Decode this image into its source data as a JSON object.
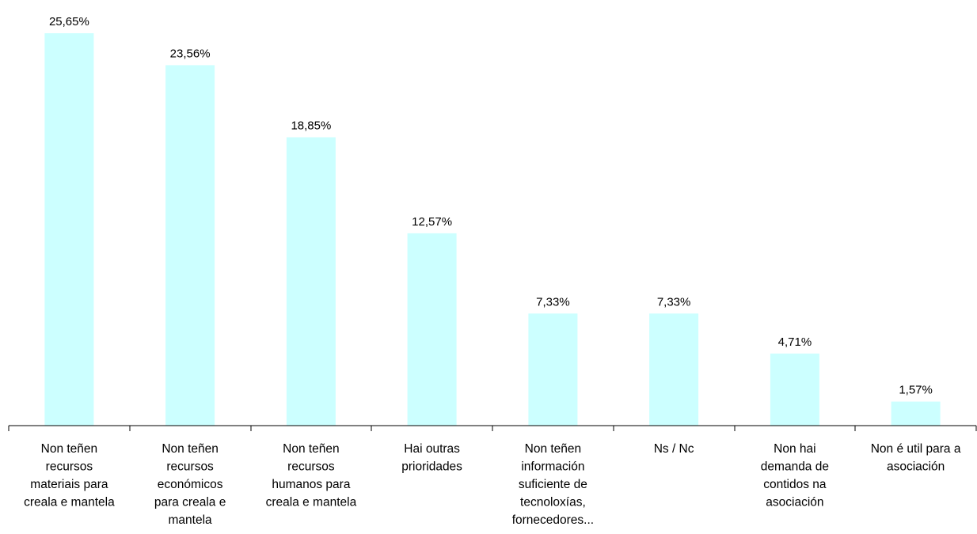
{
  "chart_data": {
    "type": "bar",
    "categories": [
      "Non teñen recursos materiais para creala e mantela",
      "Non teñen recursos económicos para creala e mantela",
      "Non teñen recursos humanos para creala e mantela",
      "Hai outras prioridades",
      "Non teñen información suficiente de tecnoloxías, fornecedores...",
      "Ns / Nc",
      "Non hai demanda de contidos na asociación",
      "Non é util para a asociación"
    ],
    "category_label_lines": [
      [
        "Non teñen",
        "recursos",
        "materiais para",
        "creala e mantela"
      ],
      [
        "Non teñen",
        "recursos",
        "económicos",
        "para creala e",
        "mantela"
      ],
      [
        "Non teñen",
        "recursos",
        "humanos para",
        "creala e mantela"
      ],
      [
        "Hai outras",
        "prioridades"
      ],
      [
        "Non teñen",
        "información",
        "suficiente de",
        "tecnoloxías,",
        "fornecedores..."
      ],
      [
        "Ns / Nc"
      ],
      [
        "Non hai",
        "demanda de",
        "contidos na",
        "asociación"
      ],
      [
        "Non é util para a",
        "asociación"
      ]
    ],
    "values": [
      25.65,
      23.56,
      18.85,
      12.57,
      7.33,
      7.33,
      4.71,
      1.57
    ],
    "data_labels": [
      "25,65%",
      "23,56%",
      "18,85%",
      "12,57%",
      "7,33%",
      "7,33%",
      "4,71%",
      "1,57%"
    ],
    "ylim": [
      0,
      25.65
    ],
    "grid": false,
    "legend": "none",
    "bar_color": "#ccffff",
    "title": "",
    "xlabel": "",
    "ylabel": ""
  }
}
